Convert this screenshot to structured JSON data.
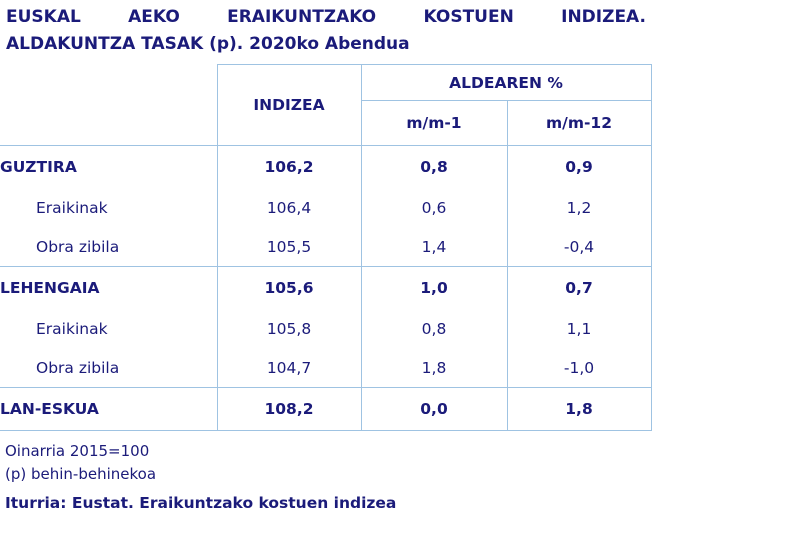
{
  "title": {
    "line1": "EUSKAL AEKO ERAIKUNTZAKO KOSTUEN INDIZEA.",
    "line2": "ALDAKUNTZA TASAK (p). 2020ko Abendua"
  },
  "table": {
    "header": {
      "index": "INDIZEA",
      "group": "ALDEAREN %",
      "mm1": "m/m-1",
      "mm12": "m/m-12"
    },
    "rows": [
      {
        "label": "GUZTIRA",
        "index": "106,2",
        "mm1": "0,8",
        "mm12": "0,9"
      },
      {
        "label": "Eraikinak",
        "index": "106,4",
        "mm1": "0,6",
        "mm12": "1,2"
      },
      {
        "label": "Obra zibila",
        "index": "105,5",
        "mm1": "1,4",
        "mm12": "-0,4"
      },
      {
        "label": "LEHENGAIA",
        "index": "105,6",
        "mm1": "1,0",
        "mm12": "0,7"
      },
      {
        "label": "Eraikinak",
        "index": "105,8",
        "mm1": "0,8",
        "mm12": "1,1"
      },
      {
        "label": "Obra zibila",
        "index": "104,7",
        "mm1": "1,8",
        "mm12": "-1,0"
      },
      {
        "label": "LAN-ESKUA",
        "index": "108,2",
        "mm1": "0,0",
        "mm12": "1,8"
      }
    ]
  },
  "notes": {
    "base": "Oinarria 2015=100",
    "provisional": "(p) behin-behinekoa"
  },
  "source": "Iturria: Eustat. Eraikuntzako kostuen indizea"
}
